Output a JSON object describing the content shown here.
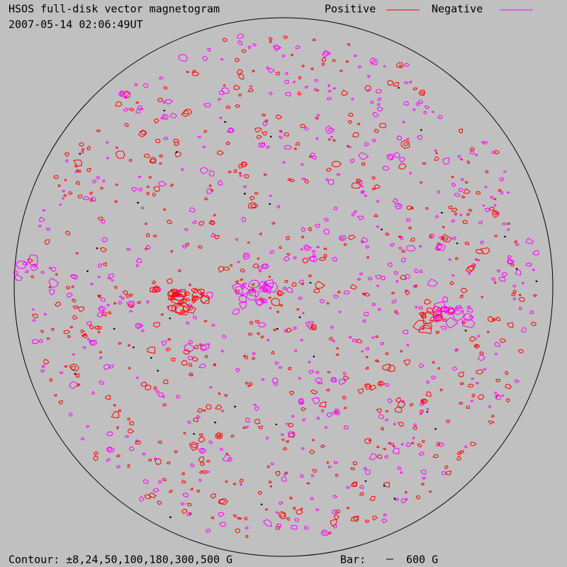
{
  "header": {
    "title": "HSOS full-disk vector magnetogram",
    "timestamp": "2007-05-14 02:06:49UT"
  },
  "legend": [
    {
      "label": "Positive",
      "color": "#ff0000"
    },
    {
      "label": "Negative",
      "color": "#ff00ff"
    }
  ],
  "footer": {
    "contour": "Contour: ±8,24,50,100,180,300,500 G",
    "bar_label": "Bar:",
    "bar_value": "600 G"
  }
}
